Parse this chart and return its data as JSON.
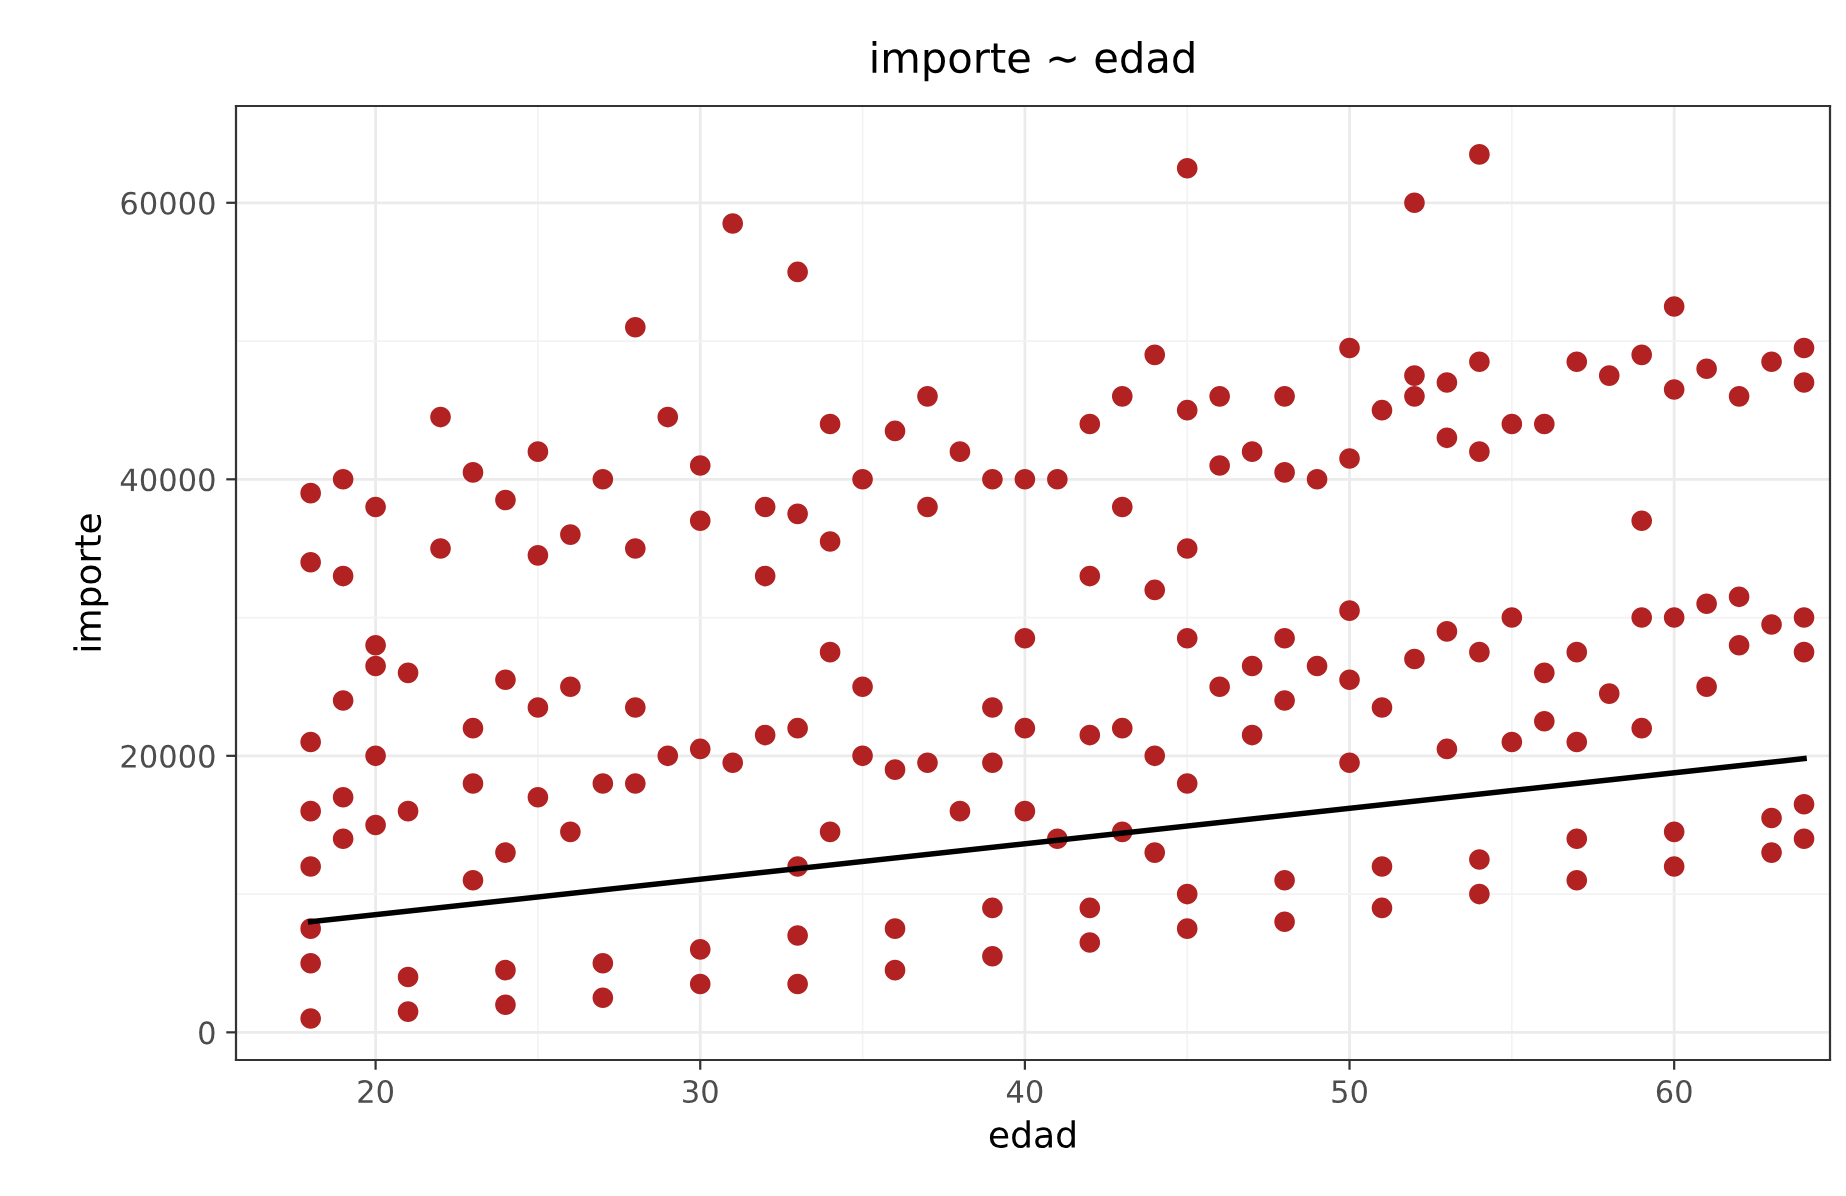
{
  "chart_data": {
    "type": "scatter",
    "title": "importe ~ edad",
    "xlabel": "edad",
    "ylabel": "importe",
    "xlim": [
      15.7,
      64.8
    ],
    "ylim": [
      -2000,
      67000
    ],
    "xticks": [
      20,
      30,
      40,
      50,
      60
    ],
    "yticks": [
      0,
      20000,
      40000,
      60000
    ],
    "grid": true,
    "legend": false,
    "marker": "circle",
    "series": [
      {
        "color": "#b22222",
        "x": [
          18,
          18,
          18,
          21,
          21,
          24,
          24,
          27,
          27,
          30,
          30,
          33,
          33,
          36,
          36,
          39,
          39,
          42,
          42,
          45,
          45,
          48,
          48,
          51,
          51,
          54,
          54,
          57,
          57,
          60,
          60,
          63,
          63,
          64,
          64,
          18,
          18,
          18,
          19,
          19,
          19,
          20,
          20,
          20,
          20,
          21,
          21,
          23,
          23,
          23,
          24,
          24,
          25,
          25,
          26,
          26,
          27,
          28,
          28,
          29,
          30,
          31,
          32,
          33,
          33,
          34,
          34,
          35,
          35,
          36,
          37,
          38,
          39,
          39,
          40,
          40,
          40,
          41,
          42,
          43,
          43,
          44,
          44,
          45,
          45,
          46,
          47,
          47,
          48,
          48,
          49,
          50,
          50,
          50,
          51,
          52,
          53,
          53,
          54,
          55,
          55,
          56,
          56,
          57,
          57,
          58,
          59,
          59,
          59,
          60,
          61,
          61,
          62,
          62,
          63,
          64,
          64,
          18,
          18,
          19,
          19,
          20,
          22,
          22,
          23,
          24,
          25,
          25,
          26,
          27,
          28,
          28,
          29,
          30,
          30,
          31,
          32,
          32,
          33,
          33,
          34,
          34,
          35,
          36,
          37,
          37,
          38,
          39,
          40,
          41,
          42,
          42,
          43,
          43,
          44,
          44,
          45,
          45,
          45,
          46,
          46,
          47,
          48,
          48,
          49,
          50,
          50,
          51,
          52,
          52,
          52,
          53,
          53,
          54,
          54,
          54,
          55,
          56,
          57,
          58,
          59,
          60,
          60,
          61,
          62,
          63,
          64,
          64
        ],
        "values": [
          1000,
          5000,
          7500,
          1500,
          4000,
          2000,
          4500,
          2500,
          5000,
          3500,
          6000,
          3500,
          7000,
          4500,
          7500,
          5500,
          9000,
          6500,
          9000,
          7500,
          10000,
          8000,
          11000,
          9000,
          12000,
          10000,
          12500,
          11000,
          14000,
          12000,
          14500,
          13000,
          15500,
          14000,
          16500,
          21000,
          16000,
          12000,
          24000,
          17000,
          14000,
          28000,
          26500,
          20000,
          15000,
          26000,
          16000,
          22000,
          18000,
          11000,
          25500,
          13000,
          23500,
          17000,
          25000,
          14500,
          18000,
          23500,
          18000,
          20000,
          20500,
          19500,
          21500,
          22000,
          12000,
          27500,
          14500,
          25000,
          20000,
          19000,
          19500,
          16000,
          23500,
          19500,
          28500,
          22000,
          16000,
          14000,
          21500,
          22000,
          14500,
          13000,
          20000,
          28500,
          18000,
          25000,
          26500,
          21500,
          28500,
          24000,
          26500,
          30500,
          25500,
          19500,
          23500,
          27000,
          29000,
          20500,
          27500,
          30000,
          21000,
          26000,
          22500,
          27500,
          21000,
          24500,
          30000,
          22000,
          37000,
          30000,
          31000,
          25000,
          31500,
          28000,
          29500,
          30000,
          27500,
          39000,
          34000,
          40000,
          33000,
          38000,
          44500,
          35000,
          40500,
          38500,
          42000,
          34500,
          36000,
          40000,
          51000,
          35000,
          44500,
          41000,
          37000,
          58500,
          38000,
          33000,
          55000,
          37500,
          44000,
          35500,
          40000,
          43500,
          46000,
          38000,
          42000,
          40000,
          40000,
          40000,
          44000,
          33000,
          46000,
          38000,
          49000,
          32000,
          62500,
          45000,
          35000,
          46000,
          41000,
          42000,
          46000,
          40500,
          40000,
          49500,
          41500,
          45000,
          60000,
          47500,
          46000,
          47000,
          43000,
          63500,
          48500,
          42000,
          44000,
          44000,
          48500,
          47500,
          49000,
          52500,
          46500,
          48000,
          46000,
          48500,
          49500,
          47000
        ]
      },
      {
        "type": "line",
        "color": "#000000",
        "x": [
          18,
          64
        ],
        "values": [
          8000,
          19800
        ],
        "marker": "none",
        "line_style": "solid"
      }
    ]
  }
}
